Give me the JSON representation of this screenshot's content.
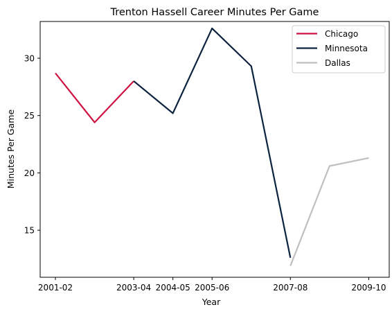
{
  "chart_data": {
    "type": "line",
    "title": "Trenton Hassell Career Minutes Per Game",
    "xlabel": "Year",
    "ylabel": "Minutes Per Game",
    "x_ticks": [
      "2001-02",
      "2003-04",
      "2004-05",
      "2005-06",
      "2007-08",
      "2009-10"
    ],
    "y_ticks": [
      15,
      20,
      25,
      30
    ],
    "ylim": [
      10.9,
      33.2
    ],
    "grid": false,
    "legend_position": "top-right",
    "series": [
      {
        "name": "Chicago",
        "color": "#ce1141",
        "points": [
          {
            "season": "2001-02",
            "value": 28.7
          },
          {
            "season": "2002-03",
            "value": 24.4
          },
          {
            "season": "2003-04",
            "value": 28.0
          }
        ]
      },
      {
        "name": "Minnesota",
        "color": "#0c2340",
        "points": [
          {
            "season": "2003-04",
            "value": 28.0
          },
          {
            "season": "2004-05",
            "value": 25.2
          },
          {
            "season": "2005-06",
            "value": 32.6
          },
          {
            "season": "2006-07",
            "value": 29.3
          },
          {
            "season": "2007-08",
            "value": 12.6
          }
        ]
      },
      {
        "name": "Dallas",
        "color": "#bfbfbf",
        "points": [
          {
            "season": "2007-08",
            "value": 11.9
          },
          {
            "season": "2008-09",
            "value": 20.6
          },
          {
            "season": "2009-10",
            "value": 21.3
          }
        ]
      }
    ]
  }
}
